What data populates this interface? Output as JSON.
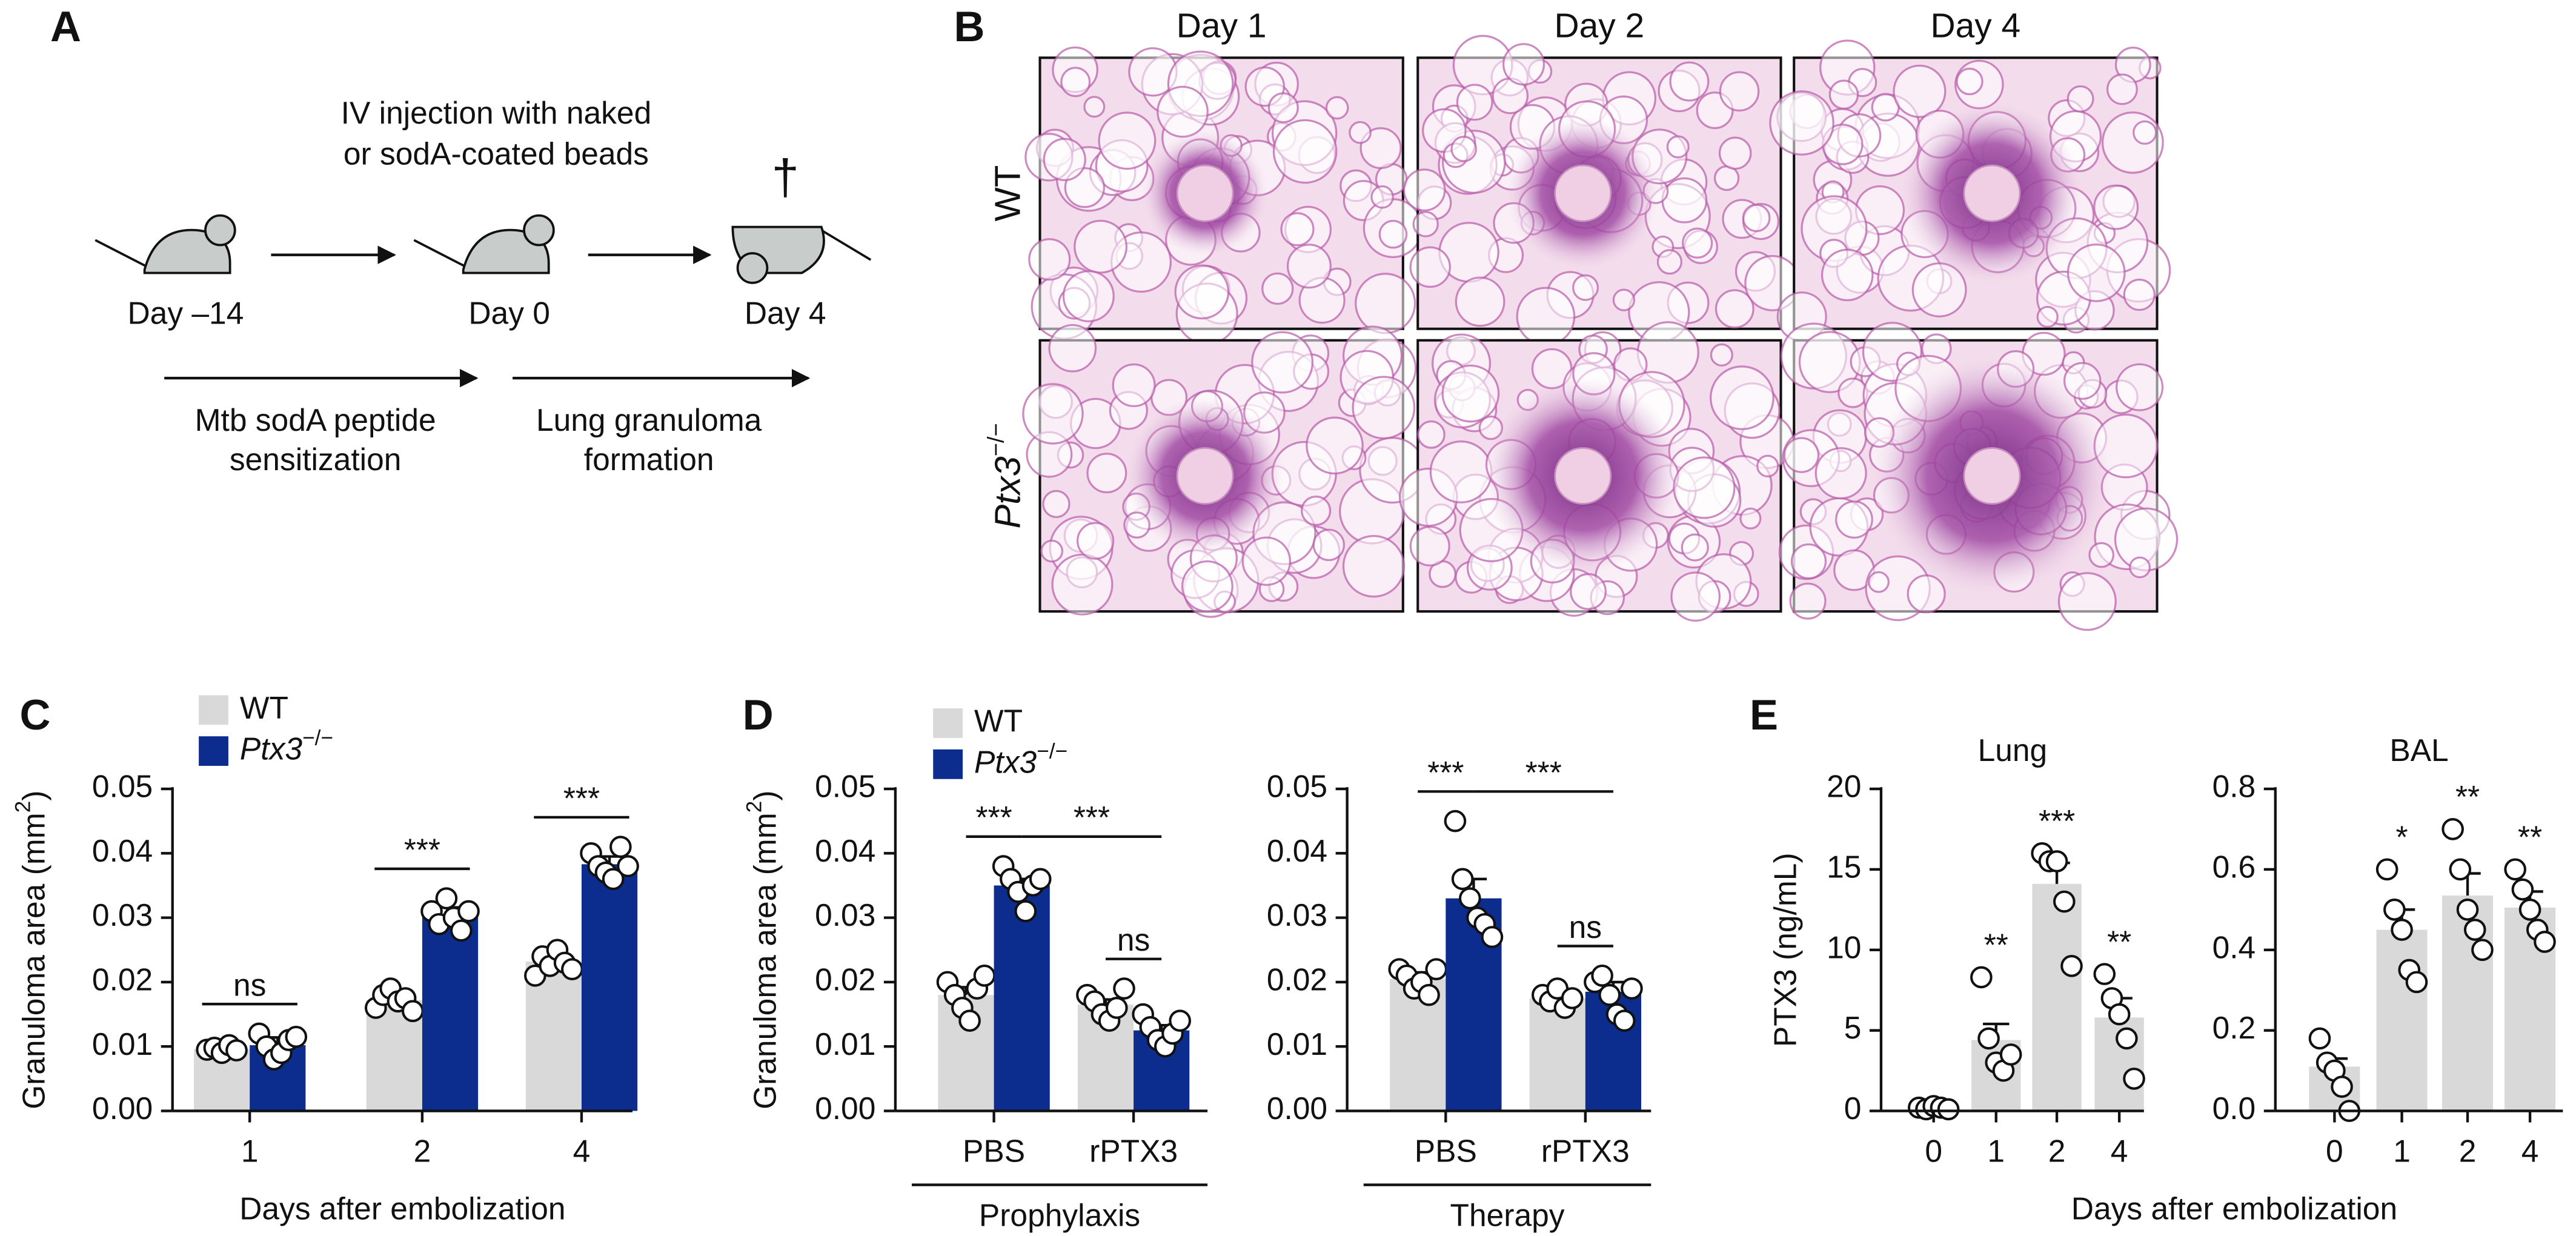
{
  "panel_a": {
    "panel_label": "A",
    "injection": [
      "IV injection with naked",
      "or sodA-coated beads"
    ],
    "dagger": "†",
    "timepoints": [
      "Day –14",
      "Day 0",
      "Day 4"
    ],
    "phases": [
      [
        "Mtb sodA peptide",
        "sensitization"
      ],
      [
        "Lung granuloma",
        "formation"
      ]
    ]
  },
  "panel_b": {
    "panel_label": "B",
    "columns": [
      "Day 1",
      "Day 2",
      "Day 4"
    ],
    "rows": [
      {
        "name": "WT"
      },
      {
        "name": "Ptx3",
        "sup": "−/−"
      }
    ]
  },
  "chart_data": [
    {
      "type": "bar",
      "panel_label": "C",
      "ylabel": "Granuloma area (mm",
      "ylabel_sup": "2",
      "ylabel_end": ")",
      "xlabel": "Days after embolization",
      "categories": [
        "1",
        "2",
        "4"
      ],
      "ylim": [
        0,
        0.05
      ],
      "yticks": [
        {
          "value": 0,
          "label": "0.00"
        },
        0.01,
        0.02,
        0.03,
        0.04,
        0.05
      ],
      "legend": true,
      "significance": [
        "ns",
        "***",
        "***"
      ],
      "series": [
        {
          "name": "WT",
          "color": "#d9d9d9",
          "values": [
            0.0096,
            0.0172,
            0.0232
          ],
          "errors": [
            0.0006,
            0.001,
            0.001
          ],
          "points": [
            [
              0.0095,
              0.0098,
              0.009,
              0.0102,
              0.0094
            ],
            [
              0.016,
              0.018,
              0.019,
              0.017,
              0.0175,
              0.0155
            ],
            [
              0.021,
              0.024,
              0.0225,
              0.025,
              0.023,
              0.022
            ]
          ]
        },
        {
          "name": "Ptx3",
          "name_sup": "−/−",
          "name_style": "italic",
          "color": "#0c2c8e",
          "values": [
            0.0102,
            0.0303,
            0.0383
          ],
          "errors": [
            0.0012,
            0.0013,
            0.0012
          ],
          "points": [
            [
              0.012,
              0.01,
              0.008,
              0.009,
              0.011,
              0.0115
            ],
            [
              0.031,
              0.029,
              0.033,
              0.03,
              0.028,
              0.031
            ],
            [
              0.04,
              0.038,
              0.037,
              0.036,
              0.041,
              0.038
            ]
          ]
        }
      ]
    },
    {
      "type": "bar",
      "panel_label": "D",
      "ylabel": "Granuloma area (mm",
      "ylabel_sup": "2",
      "ylabel_end": ")",
      "group_label": "Prophylaxis",
      "categories": [
        "PBS",
        "rPTX3"
      ],
      "ylim": [
        0,
        0.05
      ],
      "yticks": [
        {
          "value": 0,
          "label": "0.00"
        },
        0.01,
        0.02,
        0.03,
        0.04,
        0.05
      ],
      "legend": true,
      "significance": [
        "***",
        "***",
        "ns"
      ],
      "series": [
        {
          "name": "WT",
          "color": "#d9d9d9",
          "values": [
            0.018,
            0.0165
          ],
          "errors": [
            0.0012,
            0.0008
          ],
          "points": [
            [
              0.02,
              0.018,
              0.016,
              0.014,
              0.019,
              0.021
            ],
            [
              0.018,
              0.017,
              0.015,
              0.014,
              0.016,
              0.019
            ]
          ]
        },
        {
          "name": "Ptx3",
          "name_sup": "−/−",
          "name_style": "italic",
          "color": "#0c2c8e",
          "values": [
            0.035,
            0.0125
          ],
          "errors": [
            0.001,
            0.0008
          ],
          "points": [
            [
              0.038,
              0.036,
              0.034,
              0.031,
              0.035,
              0.036
            ],
            [
              0.015,
              0.013,
              0.011,
              0.01,
              0.012,
              0.014
            ]
          ]
        }
      ]
    },
    {
      "type": "bar",
      "group_label": "Therapy",
      "categories": [
        "PBS",
        "rPTX3"
      ],
      "ylim": [
        0,
        0.05
      ],
      "yticks": [
        {
          "value": 0,
          "label": "0.00"
        },
        0.01,
        0.02,
        0.03,
        0.04,
        0.05
      ],
      "significance": [
        "***",
        "***",
        "ns"
      ],
      "series": [
        {
          "color": "#d9d9d9",
          "values": [
            0.0205,
            0.0175
          ],
          "errors": [
            0.001,
            0.0007
          ],
          "points": [
            [
              0.022,
              0.021,
              0.019,
              0.02,
              0.018,
              0.022
            ],
            [
              0.018,
              0.017,
              0.019,
              0.016,
              0.0175
            ]
          ]
        },
        {
          "color": "#0c2c8e",
          "values": [
            0.033,
            0.0185
          ],
          "errors": [
            0.003,
            0.0015
          ],
          "points": [
            [
              0.045,
              0.036,
              0.033,
              0.03,
              0.029,
              0.027
            ],
            [
              0.02,
              0.021,
              0.018,
              0.015,
              0.014,
              0.019
            ]
          ]
        }
      ]
    },
    {
      "type": "bar",
      "panel_label": "E",
      "title": "Lung",
      "ylabel": "PTX3 (ng/mL)",
      "xlabel": "Days after embolization",
      "categories": [
        "0",
        "1",
        "2",
        "4"
      ],
      "ylim": [
        0,
        20
      ],
      "yticks": [
        0,
        5,
        10,
        15,
        20
      ],
      "significance": [
        null,
        "**",
        "***",
        "**"
      ],
      "series": [
        {
          "color": "#d9d9d9",
          "values": [
            0.2,
            4.4,
            14.1,
            5.8
          ],
          "errors": [
            0.1,
            1.0,
            1.3,
            1.2
          ],
          "points": [
            [
              0.2,
              0.1,
              0.3,
              0.2,
              0.1
            ],
            [
              8.3,
              4.5,
              3.0,
              2.5,
              3.5
            ],
            [
              16,
              15.5,
              15.5,
              13,
              9
            ],
            [
              8.5,
              7,
              6,
              4.5,
              2
            ]
          ]
        }
      ]
    },
    {
      "type": "bar",
      "title": "BAL",
      "categories": [
        "0",
        "1",
        "2",
        "4"
      ],
      "ylim": [
        0,
        0.8
      ],
      "yticks": [
        {
          "value": 0,
          "label": "0.0"
        },
        0.2,
        0.4,
        0.6,
        0.8
      ],
      "significance": [
        null,
        "*",
        "**",
        "**"
      ],
      "series": [
        {
          "color": "#d9d9d9",
          "values": [
            0.11,
            0.45,
            0.535,
            0.505
          ],
          "errors": [
            0.02,
            0.05,
            0.055,
            0.04
          ],
          "points": [
            [
              0.18,
              0.12,
              0.1,
              0.06,
              0.0
            ],
            [
              0.6,
              0.5,
              0.45,
              0.35,
              0.32
            ],
            [
              0.7,
              0.6,
              0.5,
              0.45,
              0.4
            ],
            [
              0.6,
              0.55,
              0.5,
              0.45,
              0.42
            ]
          ]
        }
      ]
    }
  ]
}
